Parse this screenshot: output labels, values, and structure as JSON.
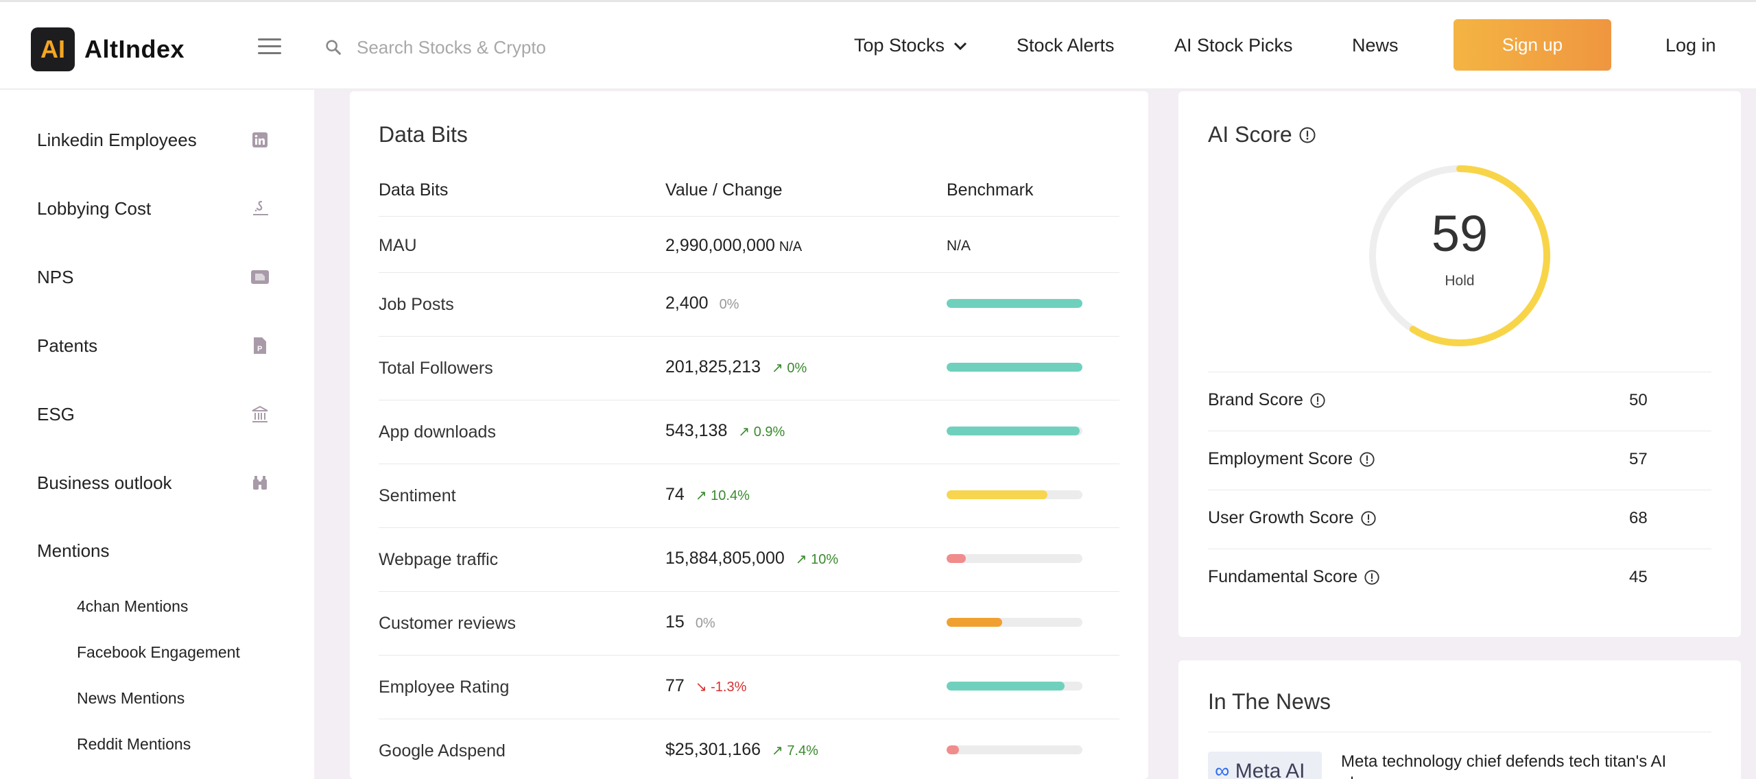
{
  "header": {
    "logo_mark": "AI",
    "logo_text": "AltIndex",
    "search_placeholder": "Search Stocks & Crypto",
    "nav": {
      "top_stocks": "Top Stocks",
      "stock_alerts": "Stock Alerts",
      "ai_stock_picks": "AI Stock Picks",
      "news": "News"
    },
    "signup": "Sign up",
    "login": "Log in"
  },
  "sidebar": {
    "items": [
      {
        "label": "Linkedin Employees",
        "icon": "linkedin-icon"
      },
      {
        "label": "Lobbying Cost",
        "icon": "lobbying-icon"
      },
      {
        "label": "NPS",
        "icon": "nps-icon"
      },
      {
        "label": "Patents",
        "icon": "patent-icon"
      },
      {
        "label": "ESG",
        "icon": "bank-icon"
      },
      {
        "label": "Business outlook",
        "icon": "binoculars-icon"
      }
    ],
    "mentions_label": "Mentions",
    "mentions_sub": [
      "4chan Mentions",
      "Facebook Engagement",
      "News Mentions",
      "Reddit Mentions"
    ]
  },
  "databits": {
    "title": "Data Bits",
    "headers": {
      "col1": "Data Bits",
      "col2": "Value / Change",
      "col3": "Benchmark"
    },
    "rows": [
      {
        "label": "MAU",
        "value": "2,990,000,000",
        "change": "N/A",
        "benchmark_text": "N/A"
      },
      {
        "label": "Job Posts",
        "value": "2,400",
        "change": "0%",
        "bar_fraction": 1.0,
        "bar_color": "#6fd1bd"
      },
      {
        "label": "Total Followers",
        "value": "201,825,213",
        "change": "0%",
        "bar_fraction": 1.0,
        "bar_color": "#6fd1bd"
      },
      {
        "label": "App downloads",
        "value": "543,138",
        "change": "0.9%",
        "bar_fraction": 0.98,
        "bar_color": "#6fd1bd"
      },
      {
        "label": "Sentiment",
        "value": "74",
        "change": "10.4%",
        "bar_fraction": 0.74,
        "bar_color": "#f7d54f"
      },
      {
        "label": "Webpage traffic",
        "value": "15,884,805,000",
        "change": "10%",
        "bar_fraction": 0.14,
        "bar_color": "#f08c8c"
      },
      {
        "label": "Customer reviews",
        "value": "15",
        "change": "0%",
        "bar_fraction": 0.41,
        "bar_color": "#f0a030"
      },
      {
        "label": "Employee Rating",
        "value": "77",
        "change": "-1.3%",
        "bar_fraction": 0.87,
        "bar_color": "#6fd1bd"
      },
      {
        "label": "Google Adspend",
        "value": "$25,301,166",
        "change": "7.4%",
        "bar_fraction": 0.09,
        "bar_color": "#f08c8c"
      }
    ]
  },
  "ai_score": {
    "title": "AI Score",
    "score": "59",
    "score_fraction": 0.59,
    "rating": "Hold",
    "gauge_color": "#f8d548",
    "breakdown": [
      {
        "label": "Brand Score",
        "value": "50"
      },
      {
        "label": "Employment Score",
        "value": "57"
      },
      {
        "label": "User Growth Score",
        "value": "68"
      },
      {
        "label": "Fundamental Score",
        "value": "45"
      }
    ]
  },
  "news": {
    "title": "In The News",
    "thumb_text": "Meta AI",
    "headline": "Meta technology chief defends tech titan's AI glasses"
  }
}
